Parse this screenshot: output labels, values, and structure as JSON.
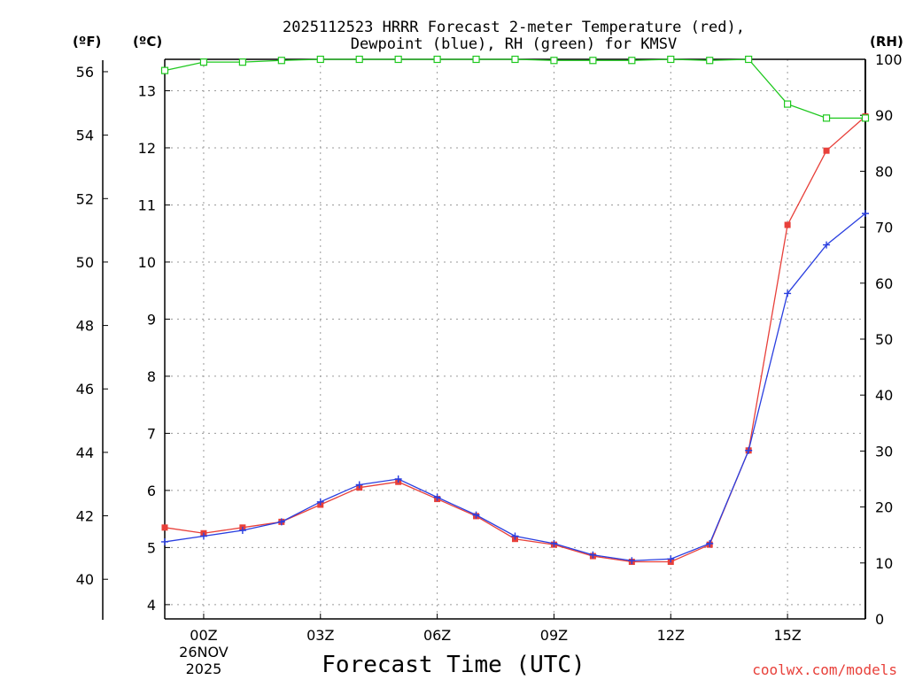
{
  "chart_data": {
    "type": "line",
    "title": "2025112523 HRRR Forecast 2-meter Temperature (red),",
    "subtitle": "Dewpoint (blue), RH (green) for KMSV",
    "units": {
      "fahrenheit": "(ºF)",
      "celsius": "(ºC)",
      "rh": "(RH)"
    },
    "xlabel": "Forecast Time (UTC)",
    "credit": "coolwx.com/models",
    "x_hours": [
      -1,
      0,
      1,
      2,
      3,
      4,
      5,
      6,
      7,
      8,
      9,
      10,
      11,
      12,
      13,
      14,
      15,
      16,
      17
    ],
    "x_ticks": [
      {
        "hour": 0,
        "label": "00Z",
        "date": "26NOV",
        "year": "2025"
      },
      {
        "hour": 3,
        "label": "03Z"
      },
      {
        "hour": 6,
        "label": "06Z"
      },
      {
        "hour": 9,
        "label": "09Z"
      },
      {
        "hour": 12,
        "label": "12Z"
      },
      {
        "hour": 15,
        "label": "15Z"
      }
    ],
    "xlim": [
      -1,
      17
    ],
    "celsius_axis": {
      "ylim": [
        3.75,
        13.55
      ],
      "ticks": [
        "4",
        "5",
        "6",
        "7",
        "8",
        "9",
        "10",
        "11",
        "12",
        "13"
      ]
    },
    "fahrenheit_axis": {
      "ticks": [
        "40",
        "42",
        "44",
        "46",
        "48",
        "50",
        "52",
        "54",
        "56"
      ]
    },
    "rh_axis": {
      "ylim": [
        0,
        100
      ],
      "ticks": [
        "0",
        "10",
        "20",
        "30",
        "40",
        "50",
        "60",
        "70",
        "80",
        "90",
        "100"
      ]
    },
    "grid": true,
    "series": [
      {
        "name": "Temperature",
        "color": "#e8403a",
        "marker": "square",
        "axis": "celsius",
        "values": [
          5.35,
          5.25,
          5.35,
          5.45,
          5.75,
          6.05,
          6.15,
          5.85,
          5.55,
          5.15,
          5.05,
          4.85,
          4.75,
          4.75,
          5.05,
          6.7,
          10.65,
          11.95,
          12.55
        ]
      },
      {
        "name": "Dewpoint",
        "color": "#2a3fe0",
        "marker": "plus",
        "axis": "celsius",
        "values": [
          5.1,
          5.2,
          5.3,
          5.45,
          5.8,
          6.1,
          6.2,
          5.88,
          5.57,
          5.2,
          5.07,
          4.87,
          4.77,
          4.8,
          5.07,
          6.7,
          9.45,
          10.3,
          10.85
        ]
      },
      {
        "name": "RH",
        "color": "#1ec81e",
        "marker": "open-square",
        "axis": "rh",
        "values": [
          98,
          99.5,
          99.5,
          99.8,
          100,
          100,
          100,
          100,
          100,
          100,
          99.8,
          99.8,
          99.8,
          100,
          99.8,
          100,
          92,
          89.5,
          89.5
        ]
      }
    ]
  }
}
